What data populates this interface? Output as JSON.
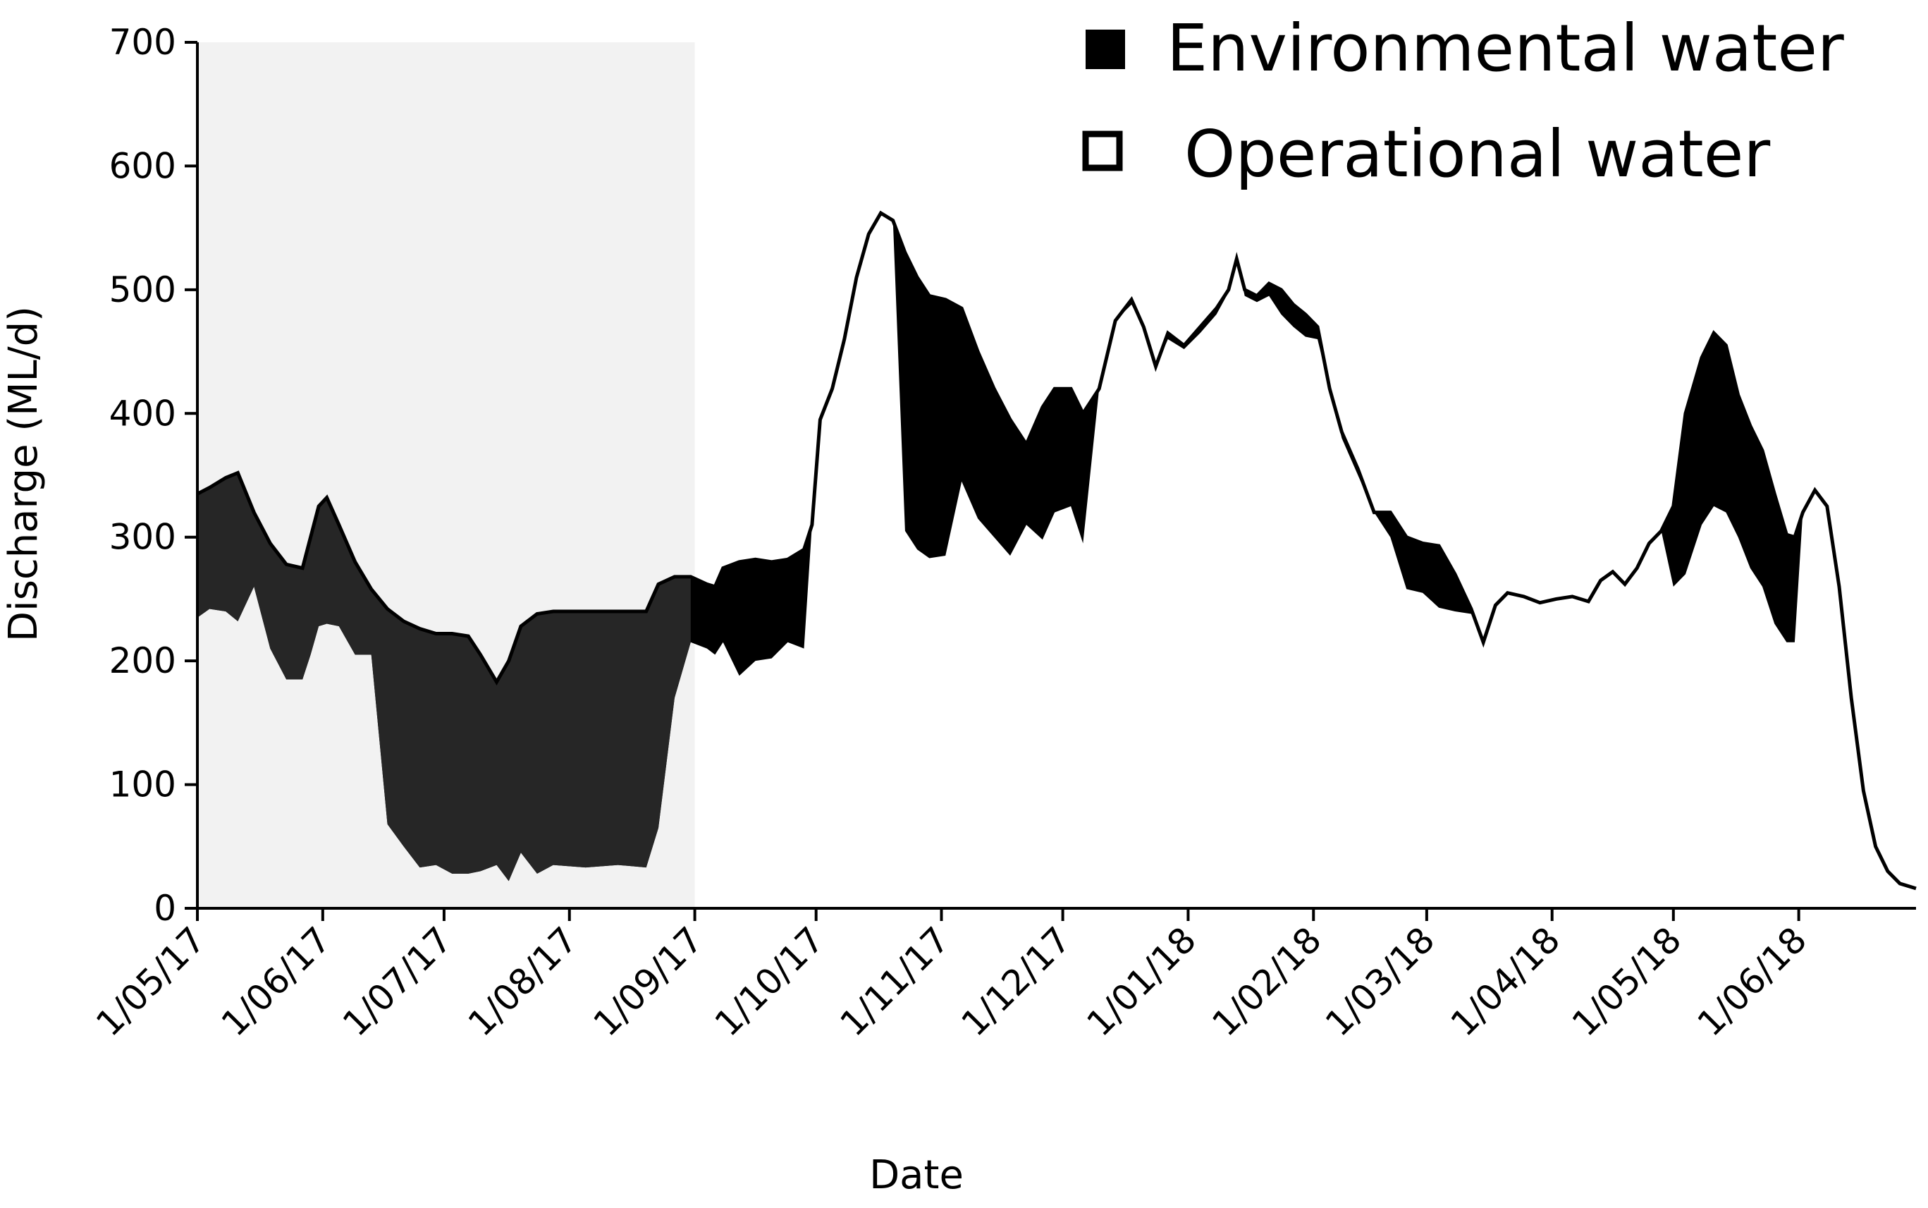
{
  "chart_data": {
    "type": "area",
    "title": "",
    "xlabel": "Date",
    "ylabel": "Discharge (ML/d)",
    "ylim": [
      0,
      700
    ],
    "yticks": [
      0,
      100,
      200,
      300,
      400,
      500,
      600,
      700
    ],
    "xlim": [
      "2017-05-01",
      "2018-06-30"
    ],
    "xticks": [
      {
        "date": "2017-05-01",
        "label": "1/05/17"
      },
      {
        "date": "2017-06-01",
        "label": "1/06/17"
      },
      {
        "date": "2017-07-01",
        "label": "1/07/17"
      },
      {
        "date": "2017-08-01",
        "label": "1/08/17"
      },
      {
        "date": "2017-09-01",
        "label": "1/09/17"
      },
      {
        "date": "2017-10-01",
        "label": "1/10/17"
      },
      {
        "date": "2017-11-01",
        "label": "1/11/17"
      },
      {
        "date": "2017-12-01",
        "label": "1/12/17"
      },
      {
        "date": "2018-01-01",
        "label": "1/01/18"
      },
      {
        "date": "2018-02-01",
        "label": "1/02/18"
      },
      {
        "date": "2018-03-01",
        "label": "1/03/18"
      },
      {
        "date": "2018-04-01",
        "label": "1/04/18"
      },
      {
        "date": "2018-05-01",
        "label": "1/05/18"
      },
      {
        "date": "2018-06-01",
        "label": "1/06/18"
      }
    ],
    "grid": false,
    "legend_position": "top-right",
    "shaded_period": {
      "start": "2017-05-01",
      "end": "2017-09-01",
      "color": "#f2f2f2"
    },
    "colors": {
      "environmental": "#000000",
      "environmental_shaded": "#262626",
      "operational": "#ffffff",
      "line": "#000000"
    },
    "series": [
      {
        "name": "Environmental water",
        "points": [
          [
            "2017-05-01",
            335
          ],
          [
            "2017-05-04",
            340
          ],
          [
            "2017-05-08",
            348
          ],
          [
            "2017-05-11",
            352
          ],
          [
            "2017-05-15",
            320
          ],
          [
            "2017-05-19",
            295
          ],
          [
            "2017-05-23",
            278
          ],
          [
            "2017-05-27",
            275
          ],
          [
            "2017-05-29",
            300
          ],
          [
            "2017-05-31",
            325
          ],
          [
            "2017-06-02",
            332
          ],
          [
            "2017-06-05",
            310
          ],
          [
            "2017-06-09",
            280
          ],
          [
            "2017-06-13",
            258
          ],
          [
            "2017-06-17",
            242
          ],
          [
            "2017-06-21",
            232
          ],
          [
            "2017-06-25",
            226
          ],
          [
            "2017-06-29",
            222
          ],
          [
            "2017-07-03",
            222
          ],
          [
            "2017-07-07",
            220
          ],
          [
            "2017-07-10",
            205
          ],
          [
            "2017-07-14",
            183
          ],
          [
            "2017-07-17",
            200
          ],
          [
            "2017-07-20",
            228
          ],
          [
            "2017-07-24",
            238
          ],
          [
            "2017-07-28",
            240
          ],
          [
            "2017-08-05",
            240
          ],
          [
            "2017-08-13",
            240
          ],
          [
            "2017-08-20",
            240
          ],
          [
            "2017-08-23",
            262
          ],
          [
            "2017-08-27",
            268
          ],
          [
            "2017-08-31",
            268
          ],
          [
            "2017-09-04",
            262
          ],
          [
            "2017-09-06",
            260
          ],
          [
            "2017-09-08",
            275
          ],
          [
            "2017-09-12",
            280
          ],
          [
            "2017-09-16",
            282
          ],
          [
            "2017-09-20",
            280
          ],
          [
            "2017-09-24",
            282
          ],
          [
            "2017-09-28",
            290
          ],
          [
            "2017-09-30",
            310
          ],
          [
            "2017-10-02",
            395
          ],
          [
            "2017-10-05",
            420
          ],
          [
            "2017-10-08",
            460
          ],
          [
            "2017-10-11",
            510
          ],
          [
            "2017-10-14",
            545
          ],
          [
            "2017-10-17",
            562
          ],
          [
            "2017-10-20",
            556
          ],
          [
            "2017-10-23",
            530
          ],
          [
            "2017-10-26",
            510
          ],
          [
            "2017-10-29",
            495
          ],
          [
            "2017-11-02",
            492
          ],
          [
            "2017-11-06",
            485
          ],
          [
            "2017-11-10",
            450
          ],
          [
            "2017-11-14",
            420
          ],
          [
            "2017-11-18",
            395
          ],
          [
            "2017-11-22",
            375
          ],
          [
            "2017-11-26",
            405
          ],
          [
            "2017-11-29",
            420
          ],
          [
            "2017-12-03",
            420
          ],
          [
            "2017-12-06",
            400
          ],
          [
            "2017-12-10",
            420
          ],
          [
            "2017-12-14",
            475
          ],
          [
            "2017-12-18",
            492
          ],
          [
            "2017-12-21",
            470
          ],
          [
            "2017-12-24",
            438
          ],
          [
            "2017-12-27",
            465
          ],
          [
            "2017-12-31",
            455
          ],
          [
            "2018-01-04",
            470
          ],
          [
            "2018-01-08",
            485
          ],
          [
            "2018-01-11",
            500
          ],
          [
            "2018-01-13",
            525
          ],
          [
            "2018-01-15",
            500
          ],
          [
            "2018-01-18",
            495
          ],
          [
            "2018-01-21",
            505
          ],
          [
            "2018-01-24",
            500
          ],
          [
            "2018-01-27",
            488
          ],
          [
            "2018-01-30",
            480
          ],
          [
            "2018-02-02",
            470
          ],
          [
            "2018-02-05",
            420
          ],
          [
            "2018-02-08",
            385
          ],
          [
            "2018-02-12",
            355
          ],
          [
            "2018-02-16",
            320
          ],
          [
            "2018-02-20",
            320
          ],
          [
            "2018-02-24",
            300
          ],
          [
            "2018-02-28",
            295
          ],
          [
            "2018-03-04",
            293
          ],
          [
            "2018-03-08",
            270
          ],
          [
            "2018-03-12",
            242
          ],
          [
            "2018-03-15",
            215
          ],
          [
            "2018-03-18",
            245
          ],
          [
            "2018-03-21",
            255
          ],
          [
            "2018-03-25",
            252
          ],
          [
            "2018-03-29",
            247
          ],
          [
            "2018-04-02",
            250
          ],
          [
            "2018-04-06",
            252
          ],
          [
            "2018-04-10",
            248
          ],
          [
            "2018-04-13",
            265
          ],
          [
            "2018-04-16",
            272
          ],
          [
            "2018-04-19",
            262
          ],
          [
            "2018-04-22",
            275
          ],
          [
            "2018-04-25",
            295
          ],
          [
            "2018-04-28",
            305
          ],
          [
            "2018-05-01",
            325
          ],
          [
            "2018-05-04",
            400
          ],
          [
            "2018-05-08",
            445
          ],
          [
            "2018-05-11",
            465
          ],
          [
            "2018-05-14",
            455
          ],
          [
            "2018-05-17",
            415
          ],
          [
            "2018-05-20",
            390
          ],
          [
            "2018-05-23",
            370
          ],
          [
            "2018-05-26",
            335
          ],
          [
            "2018-05-29",
            302
          ],
          [
            "2018-05-31",
            300
          ],
          [
            "2018-06-02",
            320
          ],
          [
            "2018-06-05",
            338
          ],
          [
            "2018-06-08",
            325
          ],
          [
            "2018-06-11",
            260
          ],
          [
            "2018-06-14",
            170
          ],
          [
            "2018-06-17",
            95
          ],
          [
            "2018-06-20",
            50
          ],
          [
            "2018-06-23",
            30
          ],
          [
            "2018-06-26",
            20
          ],
          [
            "2018-06-30",
            16
          ]
        ]
      },
      {
        "name": "Operational water",
        "points": [
          [
            "2017-05-01",
            235
          ],
          [
            "2017-05-04",
            242
          ],
          [
            "2017-05-08",
            240
          ],
          [
            "2017-05-11",
            232
          ],
          [
            "2017-05-15",
            260
          ],
          [
            "2017-05-19",
            210
          ],
          [
            "2017-05-23",
            185
          ],
          [
            "2017-05-27",
            185
          ],
          [
            "2017-05-29",
            205
          ],
          [
            "2017-05-31",
            228
          ],
          [
            "2017-06-02",
            230
          ],
          [
            "2017-06-05",
            228
          ],
          [
            "2017-06-09",
            205
          ],
          [
            "2017-06-13",
            205
          ],
          [
            "2017-06-17",
            68
          ],
          [
            "2017-06-21",
            50
          ],
          [
            "2017-06-25",
            33
          ],
          [
            "2017-06-29",
            35
          ],
          [
            "2017-07-03",
            28
          ],
          [
            "2017-07-07",
            28
          ],
          [
            "2017-07-10",
            30
          ],
          [
            "2017-07-14",
            35
          ],
          [
            "2017-07-17",
            22
          ],
          [
            "2017-07-20",
            45
          ],
          [
            "2017-07-24",
            28
          ],
          [
            "2017-07-28",
            35
          ],
          [
            "2017-08-05",
            33
          ],
          [
            "2017-08-13",
            35
          ],
          [
            "2017-08-20",
            33
          ],
          [
            "2017-08-23",
            65
          ],
          [
            "2017-08-27",
            170
          ],
          [
            "2017-08-31",
            215
          ],
          [
            "2017-09-04",
            210
          ],
          [
            "2017-09-06",
            205
          ],
          [
            "2017-09-08",
            215
          ],
          [
            "2017-09-12",
            188
          ],
          [
            "2017-09-16",
            200
          ],
          [
            "2017-09-20",
            202
          ],
          [
            "2017-09-24",
            215
          ],
          [
            "2017-09-28",
            210
          ],
          [
            "2017-09-30",
            310
          ],
          [
            "2017-10-02",
            395
          ],
          [
            "2017-10-05",
            420
          ],
          [
            "2017-10-08",
            460
          ],
          [
            "2017-10-11",
            510
          ],
          [
            "2017-10-14",
            545
          ],
          [
            "2017-10-17",
            562
          ],
          [
            "2017-10-20",
            556
          ],
          [
            "2017-10-23",
            305
          ],
          [
            "2017-10-26",
            290
          ],
          [
            "2017-10-29",
            283
          ],
          [
            "2017-11-02",
            285
          ],
          [
            "2017-11-06",
            345
          ],
          [
            "2017-11-10",
            315
          ],
          [
            "2017-11-14",
            300
          ],
          [
            "2017-11-18",
            285
          ],
          [
            "2017-11-22",
            310
          ],
          [
            "2017-11-26",
            298
          ],
          [
            "2017-11-29",
            320
          ],
          [
            "2017-12-03",
            325
          ],
          [
            "2017-12-06",
            295
          ],
          [
            "2017-12-10",
            420
          ],
          [
            "2017-12-14",
            475
          ],
          [
            "2017-12-18",
            488
          ],
          [
            "2017-12-21",
            470
          ],
          [
            "2017-12-24",
            438
          ],
          [
            "2017-12-27",
            460
          ],
          [
            "2017-12-31",
            452
          ],
          [
            "2018-01-04",
            465
          ],
          [
            "2018-01-08",
            480
          ],
          [
            "2018-01-11",
            498
          ],
          [
            "2018-01-13",
            525
          ],
          [
            "2018-01-15",
            495
          ],
          [
            "2018-01-18",
            490
          ],
          [
            "2018-01-21",
            495
          ],
          [
            "2018-01-24",
            480
          ],
          [
            "2018-01-27",
            470
          ],
          [
            "2018-01-30",
            462
          ],
          [
            "2018-02-02",
            460
          ],
          [
            "2018-02-05",
            420
          ],
          [
            "2018-02-08",
            380
          ],
          [
            "2018-02-12",
            350
          ],
          [
            "2018-02-16",
            320
          ],
          [
            "2018-02-20",
            300
          ],
          [
            "2018-02-24",
            258
          ],
          [
            "2018-02-28",
            255
          ],
          [
            "2018-03-04",
            243
          ],
          [
            "2018-03-08",
            240
          ],
          [
            "2018-03-12",
            238
          ],
          [
            "2018-03-15",
            215
          ],
          [
            "2018-03-18",
            245
          ],
          [
            "2018-03-21",
            255
          ],
          [
            "2018-03-25",
            252
          ],
          [
            "2018-03-29",
            247
          ],
          [
            "2018-04-02",
            250
          ],
          [
            "2018-04-06",
            252
          ],
          [
            "2018-04-10",
            248
          ],
          [
            "2018-04-13",
            265
          ],
          [
            "2018-04-16",
            272
          ],
          [
            "2018-04-19",
            262
          ],
          [
            "2018-04-22",
            275
          ],
          [
            "2018-04-25",
            295
          ],
          [
            "2018-04-28",
            305
          ],
          [
            "2018-05-01",
            260
          ],
          [
            "2018-05-04",
            270
          ],
          [
            "2018-05-08",
            310
          ],
          [
            "2018-05-11",
            325
          ],
          [
            "2018-05-14",
            320
          ],
          [
            "2018-05-17",
            300
          ],
          [
            "2018-05-20",
            275
          ],
          [
            "2018-05-23",
            260
          ],
          [
            "2018-05-26",
            230
          ],
          [
            "2018-05-29",
            215
          ],
          [
            "2018-05-31",
            215
          ],
          [
            "2018-06-02",
            320
          ],
          [
            "2018-06-05",
            338
          ],
          [
            "2018-06-08",
            325
          ],
          [
            "2018-06-11",
            260
          ],
          [
            "2018-06-14",
            170
          ],
          [
            "2018-06-17",
            95
          ],
          [
            "2018-06-20",
            50
          ],
          [
            "2018-06-23",
            30
          ],
          [
            "2018-06-26",
            20
          ],
          [
            "2018-06-30",
            16
          ]
        ]
      }
    ]
  }
}
